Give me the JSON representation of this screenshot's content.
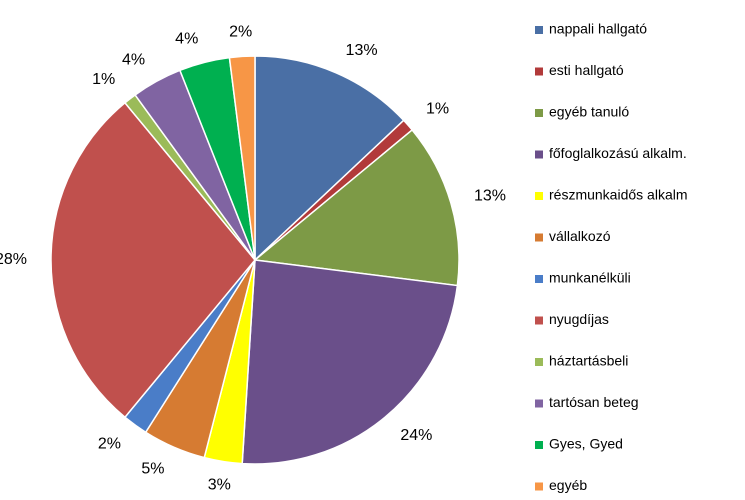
{
  "chart_data": {
    "type": "pie",
    "categories": [
      "nappali hallgató",
      "esti hallgató",
      "egyéb tanuló",
      "főfoglalkozású alkalm.",
      "részmunkaidős alkalm",
      "vállalkozó",
      "munkanélküli",
      "nyugdíjas",
      "háztartásbeli",
      "tartósan beteg",
      "Gyes, Gyed",
      "egyéb"
    ],
    "values": [
      13,
      1,
      13,
      24,
      3,
      5,
      2,
      28,
      1,
      4,
      4,
      2
    ],
    "value_labels": [
      "13%",
      "1%",
      "13%",
      "24%",
      "3%",
      "5%",
      "2%",
      "28%",
      "1%",
      "4%",
      "4%",
      "2%"
    ],
    "colors": [
      "#4a6fa5",
      "#b23a3a",
      "#7d9a46",
      "#6a4f8a",
      "#ffff00",
      "#d67b32",
      "#4a7dc8",
      "#c0504d",
      "#9bbb59",
      "#8064a2",
      "#00b050",
      "#f79646"
    ],
    "legend": "right"
  }
}
